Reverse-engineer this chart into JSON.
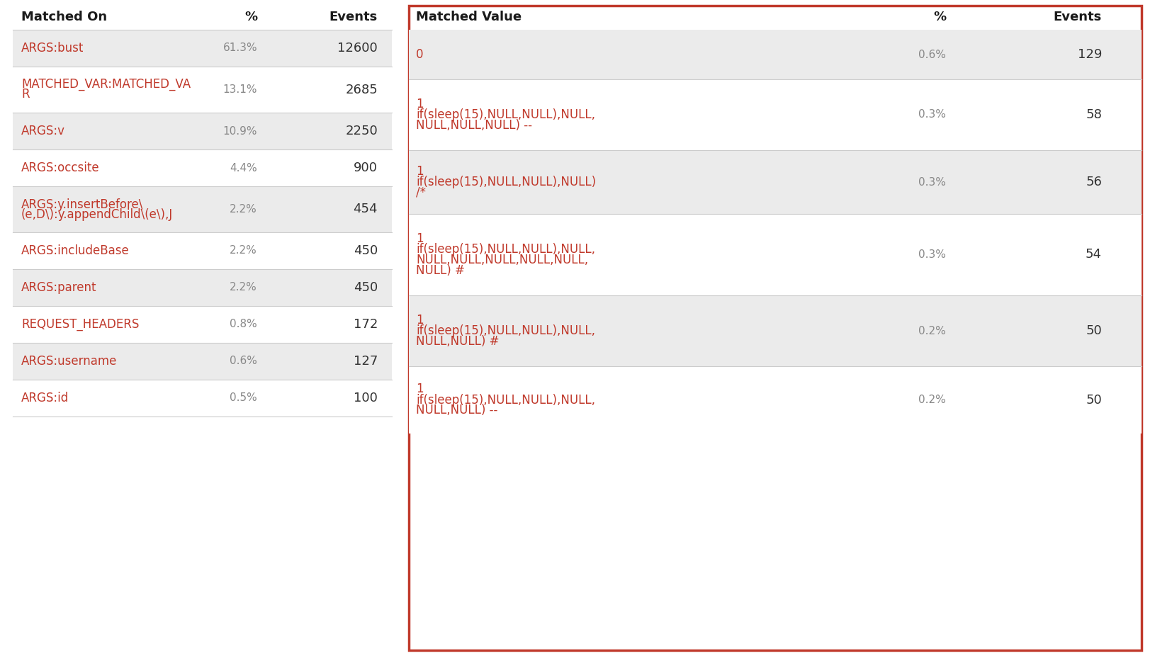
{
  "left_table": {
    "header": [
      "Matched On",
      "%",
      "Events"
    ],
    "rows": [
      {
        "label": "ARGS:bust",
        "pct": "61.3%",
        "events": "12600",
        "shaded": true
      },
      {
        "label": "MATCHED_VAR:MATCHED_VA\nR",
        "pct": "13.1%",
        "events": "2685",
        "shaded": false
      },
      {
        "label": "ARGS:v",
        "pct": "10.9%",
        "events": "2250",
        "shaded": true
      },
      {
        "label": "ARGS:occsite",
        "pct": "4.4%",
        "events": "900",
        "shaded": false
      },
      {
        "label": "ARGS:y.insertBefore\\\n(e,D\\):y.appendChild\\(e\\),J",
        "pct": "2.2%",
        "events": "454",
        "shaded": true
      },
      {
        "label": "ARGS:includeBase",
        "pct": "2.2%",
        "events": "450",
        "shaded": false
      },
      {
        "label": "ARGS:parent",
        "pct": "2.2%",
        "events": "450",
        "shaded": true
      },
      {
        "label": "REQUEST_HEADERS",
        "pct": "0.8%",
        "events": "172",
        "shaded": false
      },
      {
        "label": "ARGS:username",
        "pct": "0.6%",
        "events": "127",
        "shaded": true
      },
      {
        "label": "ARGS:id",
        "pct": "0.5%",
        "events": "100",
        "shaded": false
      }
    ]
  },
  "right_table": {
    "header": [
      "Matched Value",
      "%",
      "Events"
    ],
    "rows": [
      {
        "label": "0",
        "pct": "0.6%",
        "events": "129",
        "shaded": true
      },
      {
        "label": "1\nif(sleep(15),NULL,NULL),NULL,\nNULL,NULL,NULL) --",
        "pct": "0.3%",
        "events": "58",
        "shaded": false
      },
      {
        "label": "1\nif(sleep(15),NULL,NULL),NULL)\n/*",
        "pct": "0.3%",
        "events": "56",
        "shaded": true
      },
      {
        "label": "1\nif(sleep(15),NULL,NULL),NULL,\nNULL,NULL,NULL,NULL,NULL,\nNULL) #",
        "pct": "0.3%",
        "events": "54",
        "shaded": false
      },
      {
        "label": "1\nif(sleep(15),NULL,NULL),NULL,\nNULL,NULL) #",
        "pct": "0.2%",
        "events": "50",
        "shaded": true
      },
      {
        "label": "1\nif(sleep(15),NULL,NULL),NULL,\nNULL,NULL) --",
        "pct": "0.2%",
        "events": "50",
        "shaded": false
      }
    ]
  },
  "colors": {
    "header_text": "#1a1a1a",
    "red_text": "#c0392b",
    "gray_text": "#888888",
    "dark_text": "#333333",
    "shaded_bg": "#ebebeb",
    "white_bg": "#ffffff",
    "border_red": "#c0392b",
    "divider": "#cccccc"
  },
  "background": "#ffffff"
}
